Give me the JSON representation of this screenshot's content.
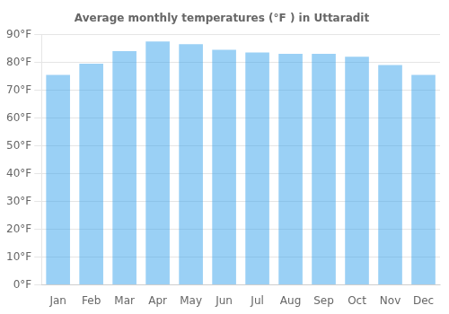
{
  "chart_data": {
    "type": "bar",
    "title": "Average monthly temperatures (°F ) in Uttaradit",
    "categories": [
      "Jan",
      "Feb",
      "Mar",
      "Apr",
      "May",
      "Jun",
      "Jul",
      "Aug",
      "Sep",
      "Oct",
      "Nov",
      "Dec"
    ],
    "values": [
      75.5,
      79.5,
      84.0,
      87.5,
      86.5,
      84.5,
      83.5,
      83.0,
      83.0,
      82.0,
      79.0,
      75.5
    ],
    "ylim": [
      0,
      90
    ],
    "yticks": [
      {
        "value": 0,
        "label": "0°F"
      },
      {
        "value": 10,
        "label": "10°F"
      },
      {
        "value": 20,
        "label": "20°F"
      },
      {
        "value": 30,
        "label": "30°F"
      },
      {
        "value": 40,
        "label": "40°F"
      },
      {
        "value": 50,
        "label": "50°F"
      },
      {
        "value": 60,
        "label": "60°F"
      },
      {
        "value": 70,
        "label": "70°F"
      },
      {
        "value": 80,
        "label": "80°F"
      },
      {
        "value": 90,
        "label": "90°F"
      }
    ],
    "grid": true
  }
}
